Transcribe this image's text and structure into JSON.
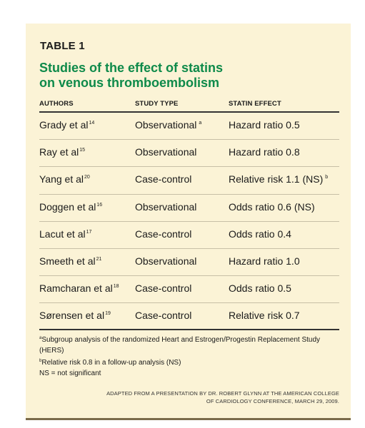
{
  "table_label": "TABLE 1",
  "title_lines": [
    "Studies of the effect of statins",
    "on venous thromboembolism"
  ],
  "columns": [
    "AUTHORS",
    "STUDY TYPE",
    "STATIN EFFECT"
  ],
  "rows": [
    {
      "author": "Grady et al",
      "ref": "14",
      "study_type": "Observational",
      "type_mark": "a",
      "effect": "Hazard ratio 0.5",
      "effect_mark": ""
    },
    {
      "author": "Ray et al",
      "ref": "15",
      "study_type": "Observational",
      "type_mark": "",
      "effect": "Hazard ratio 0.8",
      "effect_mark": ""
    },
    {
      "author": "Yang et al",
      "ref": "20",
      "study_type": "Case-control",
      "type_mark": "",
      "effect": "Relative risk 1.1 (NS)",
      "effect_mark": "b"
    },
    {
      "author": "Doggen et al",
      "ref": "16",
      "study_type": "Observational",
      "type_mark": "",
      "effect": "Odds ratio 0.6 (NS)",
      "effect_mark": ""
    },
    {
      "author": "Lacut et al",
      "ref": "17",
      "study_type": "Case-control",
      "type_mark": "",
      "effect": "Odds ratio 0.4",
      "effect_mark": ""
    },
    {
      "author": "Smeeth et al",
      "ref": "21",
      "study_type": "Observational",
      "type_mark": "",
      "effect": "Hazard ratio 1.0",
      "effect_mark": ""
    },
    {
      "author": "Ramcharan et al",
      "ref": "18",
      "study_type": "Case-control",
      "type_mark": "",
      "effect": "Odds ratio 0.5",
      "effect_mark": ""
    },
    {
      "author": "Sørensen et al",
      "ref": "19",
      "study_type": "Case-control",
      "type_mark": "",
      "effect": "Relative risk 0.7",
      "effect_mark": ""
    }
  ],
  "footnotes": {
    "a_mark": "a",
    "a_text": "Subgroup analysis of the randomized Heart and Estrogen/Progestin Replacement Study (HERS)",
    "b_mark": "b",
    "b_text": "Relative risk 0.8 in a follow-up analysis (NS)",
    "ns_text": "NS = not significant"
  },
  "source_lines": [
    "ADAPTED FROM A PRESENTATION BY DR. ROBERT GLYNN AT THE AMERICAN COLLEGE",
    "OF CARDIOLOGY CONFERENCE, MARCH 29, 2009."
  ],
  "colors": {
    "panel_background": "#fbf3d6",
    "title_green": "#0e8a4a",
    "bottom_rule": "#7a6a4a"
  }
}
